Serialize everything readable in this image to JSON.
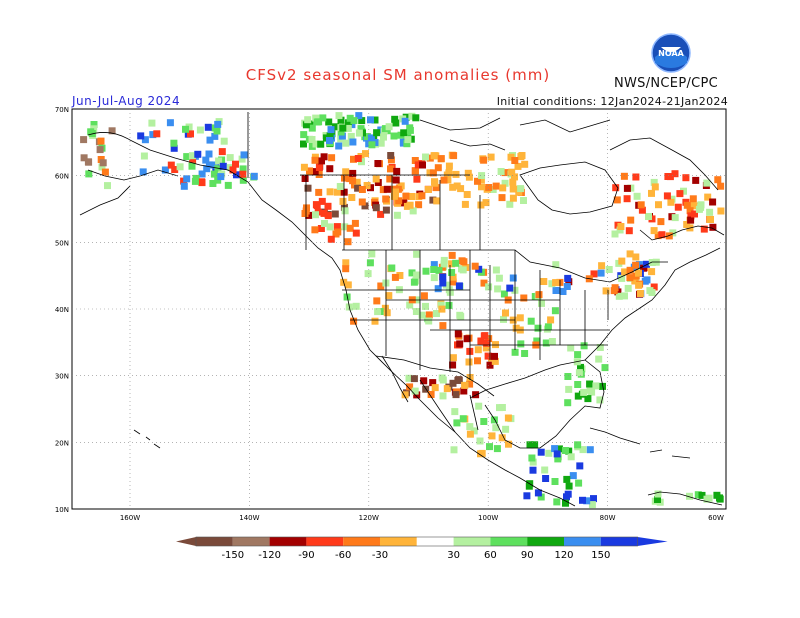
{
  "title": "CFSv2 seasonal SM anomalies (mm)",
  "season": "Jun-Jul-Aug 2024",
  "initial_conditions": "Initial conditions: 12Jan2024-21Jan2024",
  "agency": "NWS/NCEP/CPC",
  "logo_text": "NOAA",
  "map": {
    "lat_labels": [
      "70N",
      "60N",
      "50N",
      "40N",
      "30N",
      "20N",
      "10N"
    ],
    "lon_labels": [
      "160W",
      "140W",
      "120W",
      "100W",
      "80W",
      "60W"
    ]
  },
  "legend": {
    "labels": [
      "-150",
      "-120",
      "-90",
      "-60",
      "-30",
      "30",
      "60",
      "90",
      "120",
      "150"
    ],
    "colors": [
      "#7a4a3a",
      "#a07862",
      "#a30000",
      "#ff3a1a",
      "#ff7a1a",
      "#ffb43a",
      "#ffffff",
      "#b4f0a0",
      "#5ee05e",
      "#10a810",
      "#3a8ef0",
      "#1a3ae0"
    ]
  }
}
